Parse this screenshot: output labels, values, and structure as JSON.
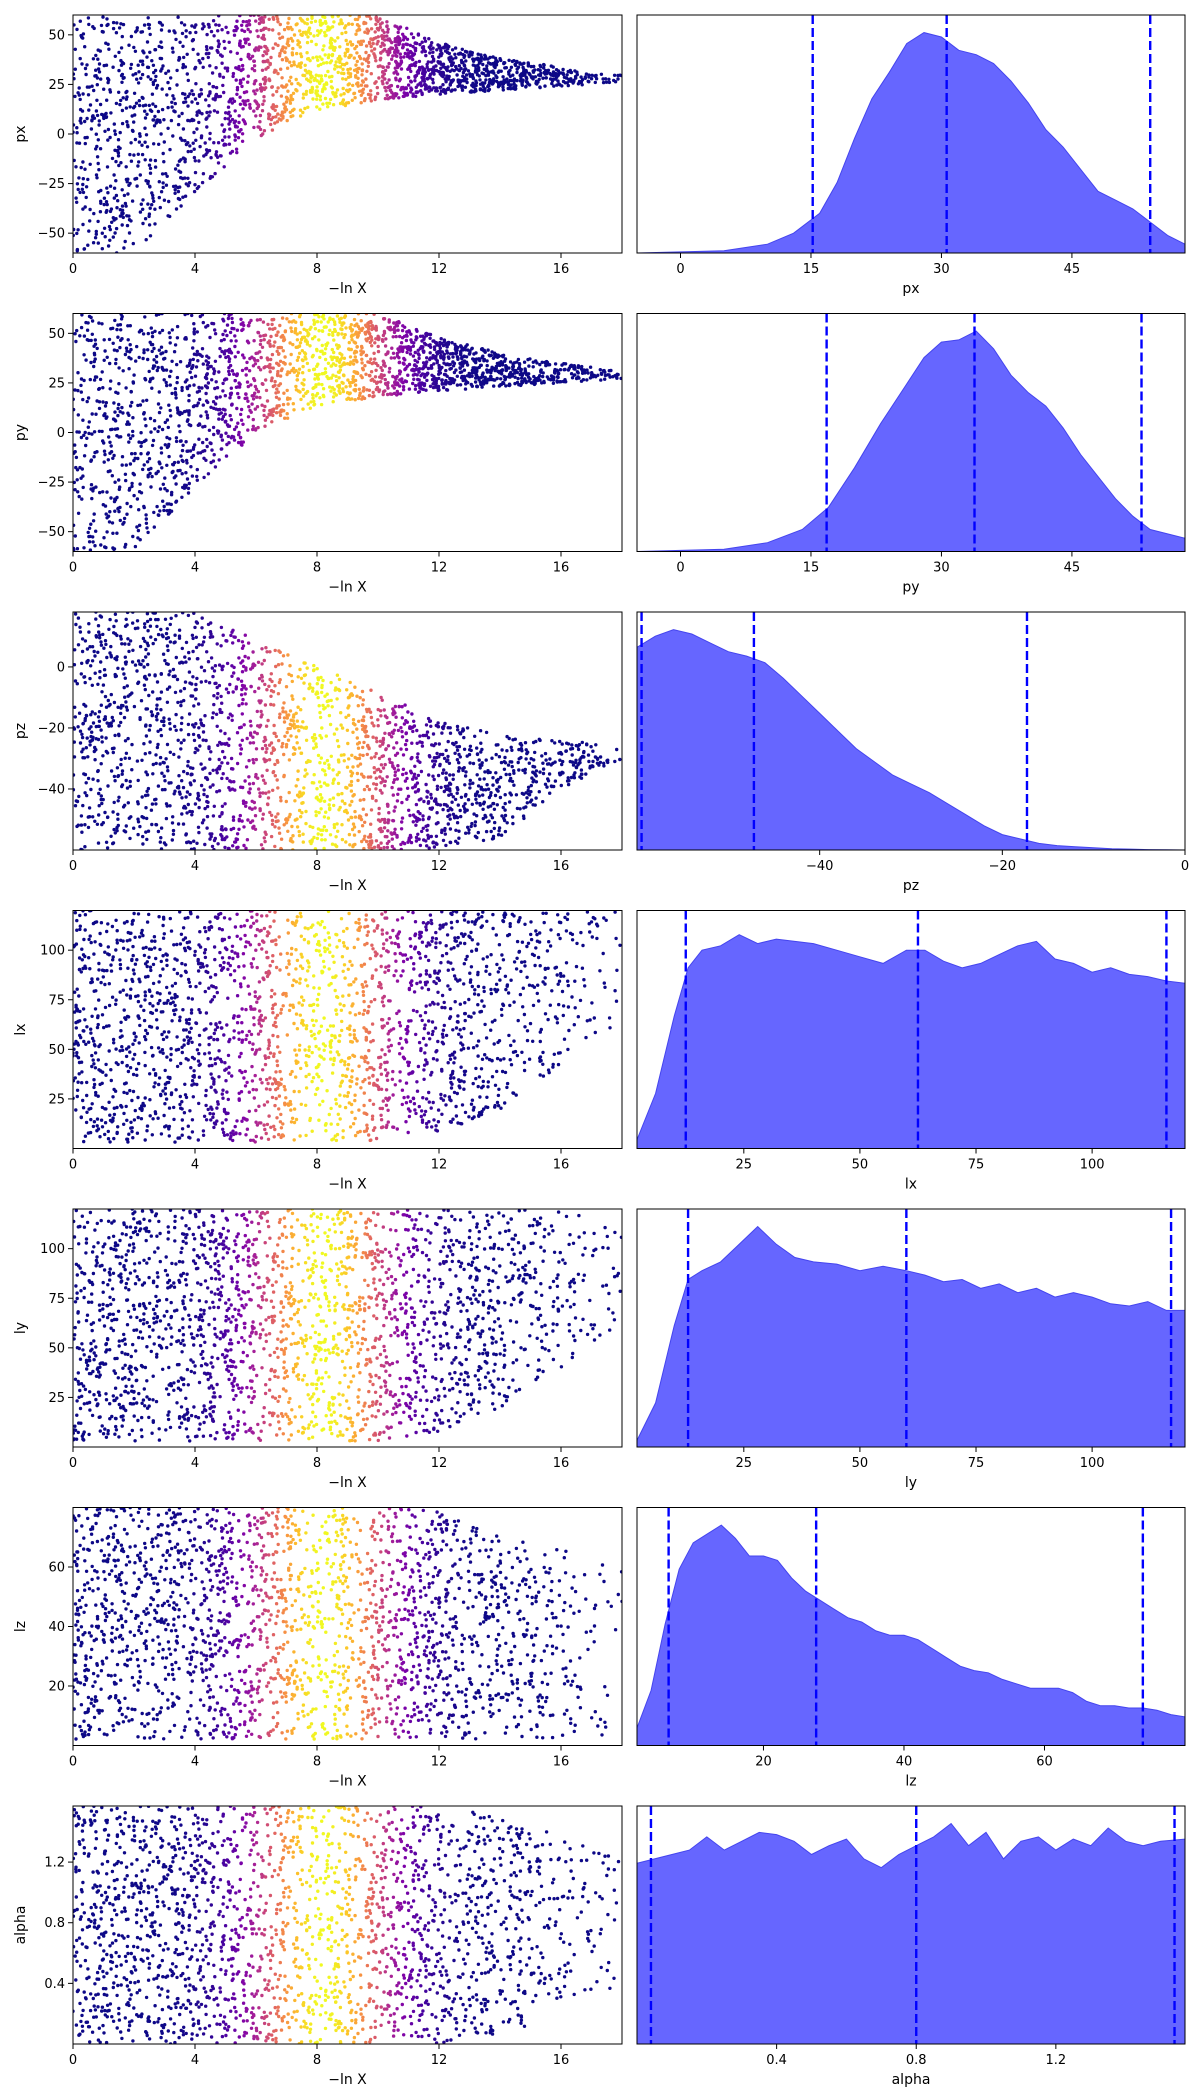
{
  "figure": {
    "rows": 7,
    "trace_xlabel": "−ln X",
    "scatter_colormap": "plasma",
    "fill_color": "#6666ff",
    "line_color": "#0000ff"
  },
  "chart_data": [
    {
      "type": "scatter",
      "param": "px",
      "xlabel": "−ln X",
      "ylabel": "px",
      "xlim": [
        0,
        18
      ],
      "ylim": [
        -60,
        60
      ],
      "xticks": [
        0,
        4,
        8,
        12,
        16
      ],
      "yticks": [
        -50,
        -25,
        0,
        25,
        50
      ],
      "trend": {
        "bound_x": [
          0,
          2,
          4,
          6,
          8,
          10,
          12,
          14,
          16,
          18
        ],
        "lower": [
          -60,
          -60,
          -30,
          -2,
          12,
          17,
          20,
          22,
          24,
          26
        ],
        "upper": [
          60,
          60,
          60,
          60,
          60,
          60,
          46,
          38,
          34,
          30
        ]
      },
      "color_peak_x": 8.2
    },
    {
      "type": "area",
      "param": "px",
      "xlabel": "px",
      "xlim": [
        -5,
        58
      ],
      "xticks": [
        0,
        15,
        30,
        45
      ],
      "quantile_lines": [
        15.2,
        30.6,
        54.0
      ],
      "x": [
        -5,
        5,
        10,
        13,
        16,
        18,
        20,
        22,
        24,
        26,
        28,
        30,
        32,
        34,
        36,
        38,
        40,
        42,
        44,
        46,
        48,
        50,
        52,
        54,
        56,
        58
      ],
      "y": [
        0.0,
        0.01,
        0.04,
        0.09,
        0.18,
        0.32,
        0.52,
        0.7,
        0.82,
        0.95,
        1.0,
        0.98,
        0.92,
        0.9,
        0.86,
        0.78,
        0.68,
        0.56,
        0.48,
        0.38,
        0.28,
        0.24,
        0.2,
        0.14,
        0.08,
        0.04
      ]
    },
    {
      "type": "scatter",
      "param": "py",
      "xlabel": "−ln X",
      "ylabel": "py",
      "xlim": [
        0,
        18
      ],
      "ylim": [
        -60,
        60
      ],
      "xticks": [
        0,
        4,
        8,
        12,
        16
      ],
      "yticks": [
        -50,
        -25,
        0,
        25,
        50
      ],
      "trend": {
        "bound_x": [
          0,
          2,
          4,
          6,
          8,
          10,
          12,
          14,
          16,
          18
        ],
        "lower": [
          -60,
          -60,
          -28,
          0,
          13,
          18,
          21,
          23,
          25,
          27
        ],
        "upper": [
          60,
          60,
          60,
          60,
          60,
          60,
          48,
          40,
          35,
          31
        ]
      },
      "color_peak_x": 8.2
    },
    {
      "type": "area",
      "param": "py",
      "xlabel": "py",
      "xlim": [
        -5,
        58
      ],
      "xticks": [
        0,
        15,
        30,
        45
      ],
      "quantile_lines": [
        16.8,
        33.8,
        53.0
      ],
      "x": [
        -5,
        5,
        10,
        14,
        17,
        20,
        23,
        26,
        28,
        30,
        32,
        34,
        36,
        38,
        40,
        42,
        44,
        46,
        48,
        50,
        52,
        54,
        56,
        58
      ],
      "y": [
        0.0,
        0.01,
        0.04,
        0.1,
        0.2,
        0.38,
        0.58,
        0.76,
        0.88,
        0.95,
        0.96,
        1.0,
        0.92,
        0.8,
        0.72,
        0.66,
        0.56,
        0.44,
        0.34,
        0.24,
        0.16,
        0.1,
        0.08,
        0.06
      ]
    },
    {
      "type": "scatter",
      "param": "pz",
      "xlabel": "−ln X",
      "ylabel": "pz",
      "xlim": [
        0,
        18
      ],
      "ylim": [
        -60,
        18
      ],
      "xticks": [
        0,
        4,
        8,
        12,
        16
      ],
      "yticks": [
        -40,
        -20,
        0
      ],
      "trend": {
        "bound_x": [
          0,
          2,
          4,
          6,
          8,
          10,
          12,
          14,
          16,
          18
        ],
        "lower": [
          -60,
          -60,
          -60,
          -60,
          -60,
          -60,
          -60,
          -56,
          -40,
          -30
        ],
        "upper": [
          18,
          18,
          18,
          10,
          0,
          -8,
          -18,
          -22,
          -24,
          -26
        ]
      },
      "color_peak_x": 8.2
    },
    {
      "type": "area",
      "param": "pz",
      "xlabel": "pz",
      "xlim": [
        -60,
        0
      ],
      "xticks": [
        -40,
        -20,
        0
      ],
      "quantile_lines": [
        -59.5,
        -47.2,
        -17.3
      ],
      "x": [
        -60,
        -58,
        -56,
        -54,
        -52,
        -50,
        -48,
        -46,
        -44,
        -42,
        -40,
        -38,
        -36,
        -34,
        -32,
        -30,
        -28,
        -26,
        -24,
        -22,
        -20,
        -18,
        -16,
        -14,
        -12,
        -10,
        -8,
        -6,
        -4,
        -2,
        0
      ],
      "y": [
        0.92,
        0.97,
        1.0,
        0.98,
        0.94,
        0.9,
        0.88,
        0.85,
        0.78,
        0.7,
        0.62,
        0.54,
        0.46,
        0.4,
        0.34,
        0.3,
        0.26,
        0.21,
        0.16,
        0.11,
        0.07,
        0.05,
        0.03,
        0.02,
        0.015,
        0.01,
        0.006,
        0.004,
        0.002,
        0.001,
        0.0
      ]
    },
    {
      "type": "scatter",
      "param": "lx",
      "xlabel": "−ln X",
      "ylabel": "lx",
      "xlim": [
        0,
        18
      ],
      "ylim": [
        0,
        120
      ],
      "xticks": [
        0,
        4,
        8,
        12,
        16
      ],
      "yticks": [
        25,
        50,
        75,
        100
      ],
      "trend": {
        "bound_x": [
          0,
          2,
          4,
          6,
          8,
          10,
          12,
          14,
          16,
          18
        ],
        "lower": [
          3,
          3,
          3,
          3,
          3,
          3,
          8,
          20,
          40,
          60
        ],
        "upper": [
          120,
          120,
          120,
          120,
          120,
          120,
          120,
          120,
          120,
          120
        ]
      },
      "color_peak_x": 8.2
    },
    {
      "type": "area",
      "param": "lx",
      "xlabel": "lx",
      "xlim": [
        2,
        120
      ],
      "xticks": [
        25,
        50,
        75,
        100
      ],
      "quantile_lines": [
        12.5,
        62.5,
        116.0
      ],
      "x": [
        2,
        6,
        10,
        13,
        16,
        20,
        24,
        28,
        32,
        36,
        40,
        45,
        50,
        55,
        60,
        64,
        68,
        72,
        76,
        80,
        84,
        88,
        92,
        96,
        100,
        104,
        108,
        112,
        116,
        120
      ],
      "y": [
        0.04,
        0.25,
        0.6,
        0.82,
        0.9,
        0.92,
        0.97,
        0.93,
        0.95,
        0.94,
        0.93,
        0.9,
        0.87,
        0.84,
        0.9,
        0.9,
        0.85,
        0.82,
        0.84,
        0.88,
        0.92,
        0.94,
        0.86,
        0.84,
        0.8,
        0.82,
        0.79,
        0.78,
        0.76,
        0.75
      ]
    },
    {
      "type": "scatter",
      "param": "ly",
      "xlabel": "−ln X",
      "ylabel": "ly",
      "xlim": [
        0,
        18
      ],
      "ylim": [
        0,
        120
      ],
      "xticks": [
        0,
        4,
        8,
        12,
        16
      ],
      "yticks": [
        25,
        50,
        75,
        100
      ],
      "trend": {
        "bound_x": [
          0,
          2,
          4,
          6,
          8,
          10,
          12,
          14,
          16,
          18
        ],
        "lower": [
          3,
          3,
          3,
          3,
          3,
          3,
          8,
          20,
          40,
          60
        ],
        "upper": [
          120,
          120,
          120,
          120,
          120,
          120,
          120,
          120,
          120,
          120
        ]
      },
      "color_peak_x": 8.2
    },
    {
      "type": "area",
      "param": "ly",
      "xlabel": "ly",
      "xlim": [
        2,
        120
      ],
      "xticks": [
        25,
        50,
        75,
        100
      ],
      "quantile_lines": [
        13.0,
        60.0,
        117.0
      ],
      "x": [
        2,
        6,
        10,
        13,
        16,
        20,
        24,
        28,
        32,
        36,
        40,
        45,
        50,
        55,
        60,
        64,
        68,
        72,
        76,
        80,
        84,
        88,
        92,
        96,
        100,
        104,
        108,
        112,
        116,
        120
      ],
      "y": [
        0.03,
        0.2,
        0.55,
        0.76,
        0.8,
        0.84,
        0.92,
        1.0,
        0.92,
        0.86,
        0.84,
        0.83,
        0.8,
        0.82,
        0.8,
        0.78,
        0.75,
        0.76,
        0.72,
        0.74,
        0.7,
        0.72,
        0.68,
        0.7,
        0.68,
        0.65,
        0.64,
        0.66,
        0.62,
        0.62
      ]
    },
    {
      "type": "scatter",
      "param": "lz",
      "xlabel": "−ln X",
      "ylabel": "lz",
      "xlim": [
        0,
        18
      ],
      "ylim": [
        0,
        80
      ],
      "xticks": [
        0,
        4,
        8,
        12,
        16
      ],
      "yticks": [
        20,
        40,
        60
      ],
      "trend": {
        "bound_x": [
          0,
          2,
          4,
          6,
          8,
          10,
          12,
          14,
          16,
          18
        ],
        "lower": [
          2,
          2,
          2,
          2,
          2,
          2,
          2,
          2,
          2,
          2
        ],
        "upper": [
          80,
          80,
          80,
          80,
          80,
          80,
          80,
          70,
          66,
          60
        ]
      },
      "color_peak_x": 8.2
    },
    {
      "type": "area",
      "param": "lz",
      "xlabel": "lz",
      "xlim": [
        2,
        80
      ],
      "xticks": [
        20,
        40,
        60
      ],
      "quantile_lines": [
        6.5,
        27.5,
        74.0
      ],
      "x": [
        2,
        4,
        6,
        8,
        10,
        12,
        14,
        16,
        18,
        20,
        22,
        24,
        26,
        28,
        30,
        32,
        34,
        36,
        38,
        40,
        42,
        44,
        46,
        48,
        50,
        52,
        54,
        56,
        58,
        60,
        62,
        64,
        66,
        68,
        70,
        72,
        74,
        76,
        78,
        80
      ],
      "y": [
        0.08,
        0.25,
        0.55,
        0.8,
        0.92,
        0.96,
        1.0,
        0.94,
        0.86,
        0.86,
        0.84,
        0.76,
        0.7,
        0.66,
        0.62,
        0.58,
        0.56,
        0.52,
        0.5,
        0.5,
        0.48,
        0.44,
        0.4,
        0.36,
        0.34,
        0.33,
        0.3,
        0.28,
        0.26,
        0.26,
        0.26,
        0.24,
        0.2,
        0.18,
        0.18,
        0.17,
        0.17,
        0.16,
        0.14,
        0.13
      ]
    },
    {
      "type": "scatter",
      "param": "alpha",
      "xlabel": "−ln X",
      "ylabel": "alpha",
      "xlim": [
        0,
        18
      ],
      "ylim": [
        0.0,
        1.57
      ],
      "xticks": [
        0,
        4,
        8,
        12,
        16
      ],
      "yticks": [
        0.4,
        0.8,
        1.2
      ],
      "trend": {
        "bound_x": [
          0,
          2,
          4,
          6,
          8,
          10,
          12,
          14,
          16,
          18
        ],
        "lower": [
          0.0,
          0.0,
          0.0,
          0.0,
          0.0,
          0.0,
          0.0,
          0.05,
          0.2,
          0.4
        ],
        "upper": [
          1.57,
          1.57,
          1.57,
          1.57,
          1.57,
          1.57,
          1.57,
          1.5,
          1.4,
          1.2
        ]
      },
      "color_peak_x": 8.2
    },
    {
      "type": "area",
      "param": "alpha",
      "xlabel": "alpha",
      "xlim": [
        0.0,
        1.57
      ],
      "xticks": [
        0.4,
        0.8,
        1.2
      ],
      "quantile_lines": [
        0.04,
        0.8,
        1.54
      ],
      "x": [
        0.0,
        0.05,
        0.1,
        0.15,
        0.2,
        0.25,
        0.3,
        0.35,
        0.4,
        0.45,
        0.5,
        0.55,
        0.6,
        0.65,
        0.7,
        0.75,
        0.8,
        0.85,
        0.9,
        0.95,
        1.0,
        1.05,
        1.1,
        1.15,
        1.2,
        1.25,
        1.3,
        1.35,
        1.4,
        1.45,
        1.5,
        1.57
      ],
      "y": [
        0.82,
        0.84,
        0.86,
        0.88,
        0.94,
        0.88,
        0.92,
        0.96,
        0.95,
        0.92,
        0.86,
        0.9,
        0.93,
        0.84,
        0.8,
        0.86,
        0.9,
        0.94,
        1.0,
        0.9,
        0.96,
        0.84,
        0.92,
        0.94,
        0.88,
        0.93,
        0.9,
        0.98,
        0.92,
        0.9,
        0.92,
        0.93
      ]
    }
  ]
}
